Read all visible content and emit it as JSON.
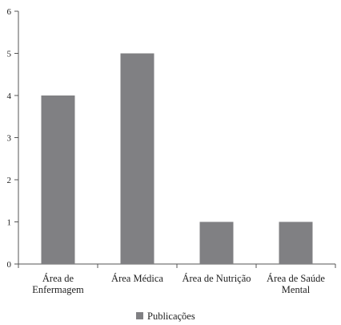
{
  "chart_data": {
    "type": "bar",
    "categories": [
      [
        "Área de",
        "Enfermagem"
      ],
      [
        "Área Médica"
      ],
      [
        "Área de Nutrição"
      ],
      [
        "Área de Saúde",
        "Mental"
      ]
    ],
    "series": [
      {
        "name": "Publicações",
        "values": [
          4,
          5,
          1,
          1
        ],
        "color": "#808083"
      }
    ],
    "ylim": [
      0,
      6
    ],
    "yticks": [
      "0",
      "1",
      "2",
      "3",
      "4",
      "5",
      "6"
    ],
    "grid": false,
    "legend": "bottom-center"
  }
}
